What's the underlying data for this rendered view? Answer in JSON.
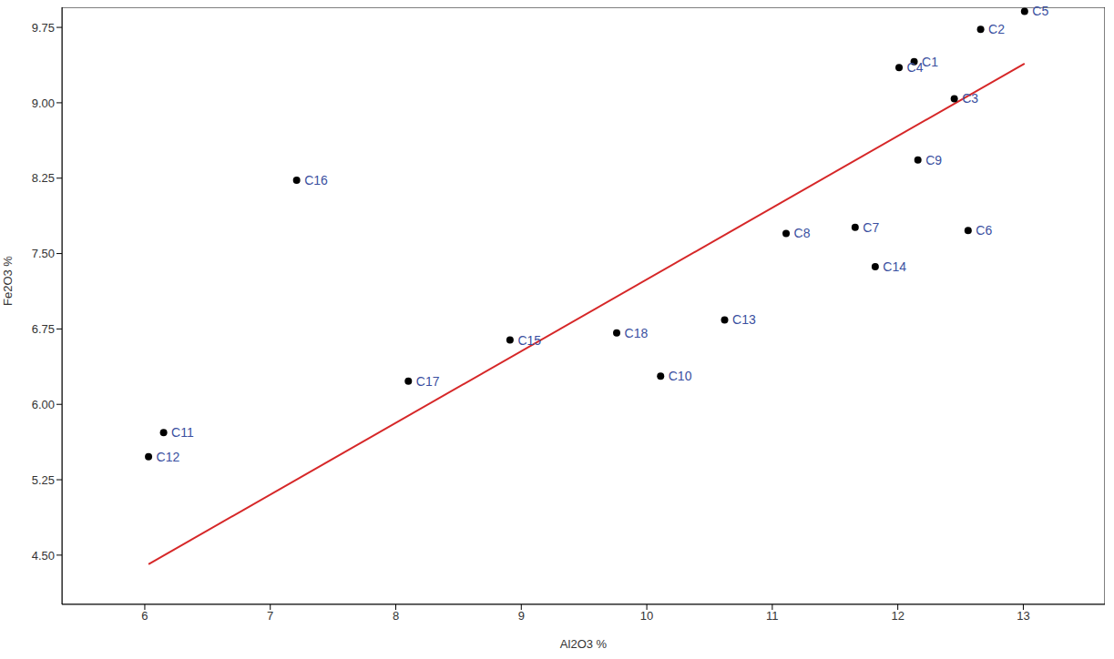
{
  "chart_data": {
    "type": "scatter",
    "x_label": "Al2O3 %",
    "y_label": "Fe2O3 %",
    "x": [
      12.13,
      12.66,
      12.45,
      12.01,
      13.01,
      12.56,
      11.66,
      11.11,
      12.16,
      10.11,
      6.15,
      6.03,
      10.62,
      11.82,
      8.91,
      7.21,
      8.1,
      9.76
    ],
    "values": [
      9.41,
      9.73,
      9.04,
      9.35,
      9.91,
      7.73,
      7.76,
      7.7,
      8.43,
      6.28,
      5.72,
      5.48,
      6.84,
      7.37,
      6.64,
      8.23,
      6.23,
      6.71
    ],
    "point_labels": [
      "C1",
      "C2",
      "C3",
      "C4",
      "C5",
      "C6",
      "C7",
      "C8",
      "C9",
      "C10",
      "C11",
      "C12",
      "C13",
      "C14",
      "C15",
      "C16",
      "C17",
      "C18"
    ],
    "color": "#000000",
    "marker": "circle",
    "trend_line": {
      "x": [
        6.03,
        13.01
      ],
      "values": [
        4.41,
        9.39
      ],
      "color": "#d62728",
      "line_style": "solid"
    },
    "xlim": [
      5.34,
      13.65
    ],
    "xticks": [
      6,
      7,
      8,
      9,
      10,
      11,
      12,
      13
    ],
    "ylim": [
      4.01,
      9.95
    ],
    "yticks": [
      {
        "value": 4.5,
        "label": "4.50"
      },
      5.25,
      {
        "value": 6,
        "label": "6.00"
      },
      6.75,
      {
        "value": 7.5,
        "label": "7.50"
      },
      8.25,
      {
        "value": 9,
        "label": "9.00"
      },
      9.75
    ],
    "grid": false
  }
}
